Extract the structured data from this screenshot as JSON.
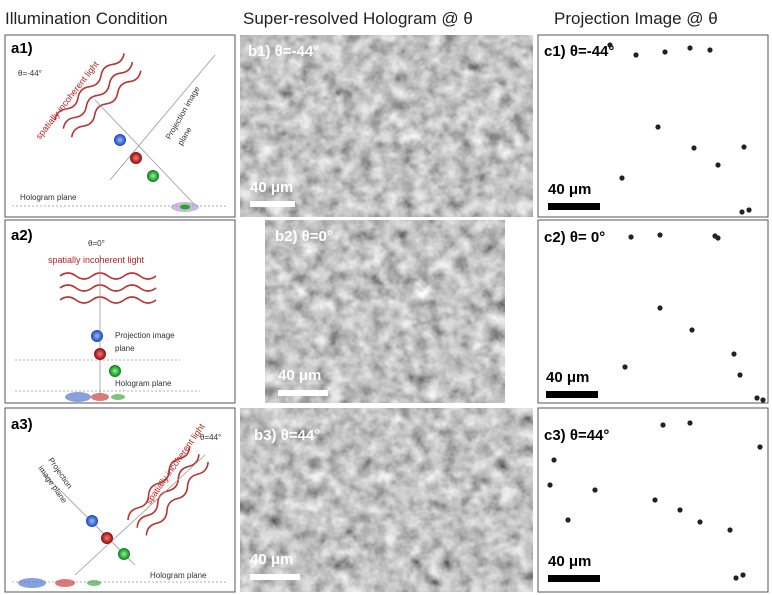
{
  "header": {
    "col_a": "Illumination Condition",
    "col_b": "Super-resolved Hologram @ θ",
    "col_c": "Projection Image @ θ"
  },
  "illumination": [
    {
      "label": "a1)",
      "angle": "θ=-44°",
      "light": "spatially incoherent light",
      "projection_plane": [
        "Projection image",
        "plane"
      ],
      "hologram_plane": "Hologram plane"
    },
    {
      "label": "a2)",
      "angle": "θ=0°",
      "light": "spatially incoherent light",
      "projection_plane": [
        "Projection image",
        "plane"
      ],
      "hologram_plane": "Hologram plane"
    },
    {
      "label": "a3)",
      "angle": "θ=44°",
      "light": "spatially incoherent light",
      "projection_plane": [
        "Projection",
        "image plane"
      ],
      "hologram_plane": "Hologram plane"
    }
  ],
  "holograms": [
    {
      "label": "b1) θ=-44°",
      "scale": "40 μm"
    },
    {
      "label": "b2) θ=0°",
      "scale": "40 μm"
    },
    {
      "label": "b3) θ=44°",
      "scale": "40 μm"
    }
  ],
  "projections": [
    {
      "label": "c1) θ=-44°",
      "scale": "40 μm"
    },
    {
      "label": "c2) θ= 0°",
      "scale": "40 μm"
    },
    {
      "label": "c3) θ=44°",
      "scale": "40 μm"
    }
  ]
}
